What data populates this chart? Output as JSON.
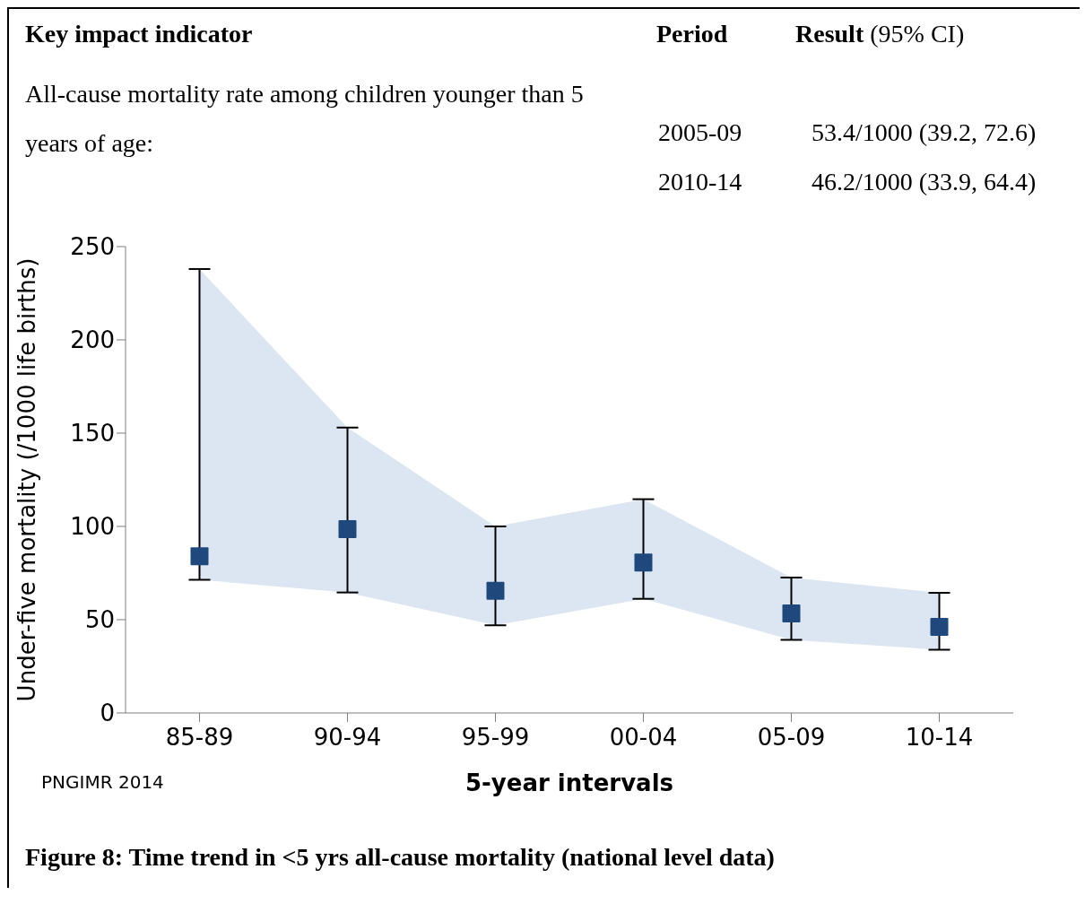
{
  "chart_data": {
    "type": "scatter",
    "title": "Figure 8: Time trend in <5 yrs all-cause mortality (national level data)",
    "xlabel": "5-year intervals",
    "ylabel": "Under-five mortality (/1000 life births)",
    "annotations": [
      "Key impact indicator",
      "Period",
      "Result",
      "(95% CI)",
      "All-cause mortality rate among children younger than 5 years of age:",
      "2005-09",
      "53.4/1000 (39.2, 72.6)",
      "2010-14",
      "46.2/1000 (33.9, 64.4)",
      "PNGIMR 2014"
    ],
    "categories": [
      "85-89",
      "90-94",
      "95-99",
      "00-04",
      "05-09",
      "10-14"
    ],
    "series": [
      {
        "color": "#1f497d",
        "values": [
          84,
          98.5,
          65.5,
          80.6,
          53.4,
          46.2
        ],
        "errors": [
          [
            71.4,
            238
          ],
          [
            64.6,
            153
          ],
          [
            47,
            100
          ],
          [
            61.2,
            114.6
          ],
          [
            39.2,
            72.6
          ],
          [
            33.9,
            64.4
          ]
        ],
        "lower": [
          71.4,
          64.6,
          47,
          61.2,
          39.2,
          33.9
        ],
        "upper": [
          238,
          153,
          100,
          114.6,
          72.6,
          64.4
        ]
      }
    ],
    "ylim": [
      0,
      250
    ],
    "yticks": [
      0,
      50,
      100,
      150,
      200,
      250
    ],
    "marker": "square"
  }
}
